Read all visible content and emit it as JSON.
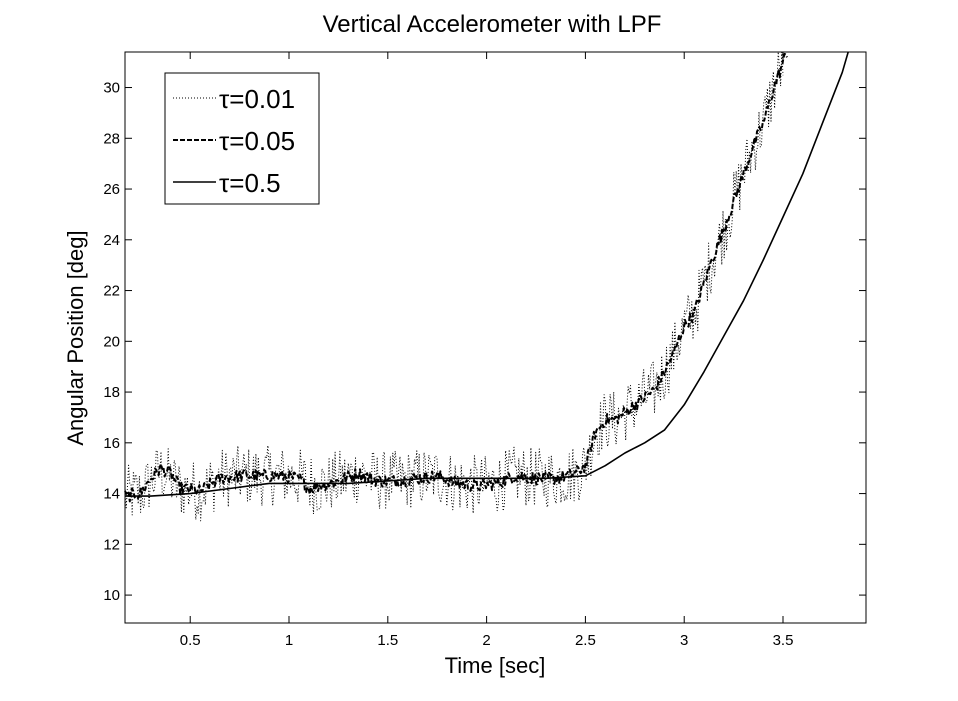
{
  "chart_data": {
    "type": "line",
    "title": "Vertical Accelerometer with LPF",
    "xlabel": "Time [sec]",
    "ylabel": "Angular Position [deg]",
    "xlim": [
      0.17,
      3.92
    ],
    "ylim": [
      8.9,
      31.4
    ],
    "xticks": [
      0.5,
      1,
      1.5,
      2,
      2.5,
      3,
      3.5
    ],
    "xtick_labels": [
      "0.5",
      "1",
      "1.5",
      "2",
      "2.5",
      "3",
      "3.5"
    ],
    "yticks": [
      10,
      12,
      14,
      16,
      18,
      20,
      22,
      24,
      26,
      28,
      30
    ],
    "ytick_labels": [
      "10",
      "12",
      "14",
      "16",
      "18",
      "20",
      "22",
      "24",
      "26",
      "28",
      "30"
    ],
    "grid": false,
    "legend_position": "top-left",
    "series": [
      {
        "name": "τ=0.01",
        "style": "dotted",
        "x": [
          0.17,
          0.25,
          0.35,
          0.45,
          0.55,
          0.65,
          0.75,
          0.85,
          0.95,
          1.05,
          1.15,
          1.25,
          1.35,
          1.45,
          1.55,
          1.65,
          1.75,
          1.85,
          1.95,
          2.05,
          2.15,
          2.25,
          2.35,
          2.45,
          2.5,
          2.55,
          2.6,
          2.65,
          2.7,
          2.75,
          2.8,
          2.85,
          2.9,
          2.95,
          3.0,
          3.05,
          3.1,
          3.15,
          3.2,
          3.25,
          3.3,
          3.35,
          3.4,
          3.45,
          3.5
        ],
        "y": [
          13.9,
          14.0,
          14.9,
          14.2,
          14.1,
          14.6,
          14.7,
          14.7,
          14.7,
          14.6,
          14.3,
          14.5,
          14.8,
          14.5,
          14.5,
          14.6,
          14.7,
          14.4,
          14.3,
          14.4,
          14.7,
          14.6,
          14.6,
          14.8,
          15.1,
          16.4,
          16.9,
          16.9,
          17.2,
          17.5,
          17.8,
          18.1,
          18.8,
          19.6,
          20.6,
          21.1,
          22.3,
          23.4,
          24.4,
          25.5,
          26.6,
          27.7,
          28.6,
          29.9,
          31.0
        ],
        "noise": 1.2
      },
      {
        "name": "τ=0.05",
        "style": "dashed",
        "x": [
          0.17,
          0.25,
          0.3,
          0.35,
          0.4,
          0.45,
          0.55,
          0.65,
          0.75,
          0.85,
          0.95,
          1.05,
          1.1,
          1.15,
          1.25,
          1.35,
          1.45,
          1.55,
          1.65,
          1.75,
          1.85,
          1.95,
          2.05,
          2.15,
          2.25,
          2.35,
          2.45,
          2.5,
          2.55,
          2.6,
          2.65,
          2.7,
          2.75,
          2.8,
          2.85,
          2.9,
          2.95,
          3.0,
          3.05,
          3.1,
          3.15,
          3.2,
          3.25,
          3.3,
          3.35,
          3.4,
          3.45,
          3.52
        ],
        "y": [
          13.9,
          14.0,
          14.6,
          15.0,
          14.8,
          14.2,
          14.1,
          14.6,
          14.7,
          14.7,
          14.7,
          14.6,
          14.2,
          14.3,
          14.5,
          14.8,
          14.5,
          14.5,
          14.6,
          14.7,
          14.4,
          14.3,
          14.4,
          14.7,
          14.6,
          14.6,
          14.8,
          15.1,
          16.4,
          16.9,
          16.9,
          17.2,
          17.5,
          17.8,
          18.1,
          18.8,
          19.6,
          20.6,
          21.1,
          22.3,
          23.4,
          24.4,
          25.5,
          26.6,
          27.7,
          28.6,
          29.9,
          31.4
        ],
        "noise": 0.25
      },
      {
        "name": "τ=0.5",
        "style": "solid",
        "x": [
          0.17,
          0.3,
          0.5,
          0.7,
          0.9,
          1.1,
          1.3,
          1.5,
          1.7,
          1.9,
          2.1,
          2.3,
          2.5,
          2.6,
          2.7,
          2.8,
          2.9,
          3.0,
          3.1,
          3.2,
          3.3,
          3.4,
          3.5,
          3.6,
          3.7,
          3.8,
          3.83
        ],
        "y": [
          13.9,
          13.9,
          14.0,
          14.2,
          14.4,
          14.4,
          14.4,
          14.5,
          14.6,
          14.6,
          14.6,
          14.6,
          14.7,
          15.1,
          15.6,
          16.0,
          16.5,
          17.5,
          18.8,
          20.2,
          21.6,
          23.2,
          24.9,
          26.6,
          28.6,
          30.6,
          31.4
        ],
        "noise": 0
      }
    ]
  }
}
